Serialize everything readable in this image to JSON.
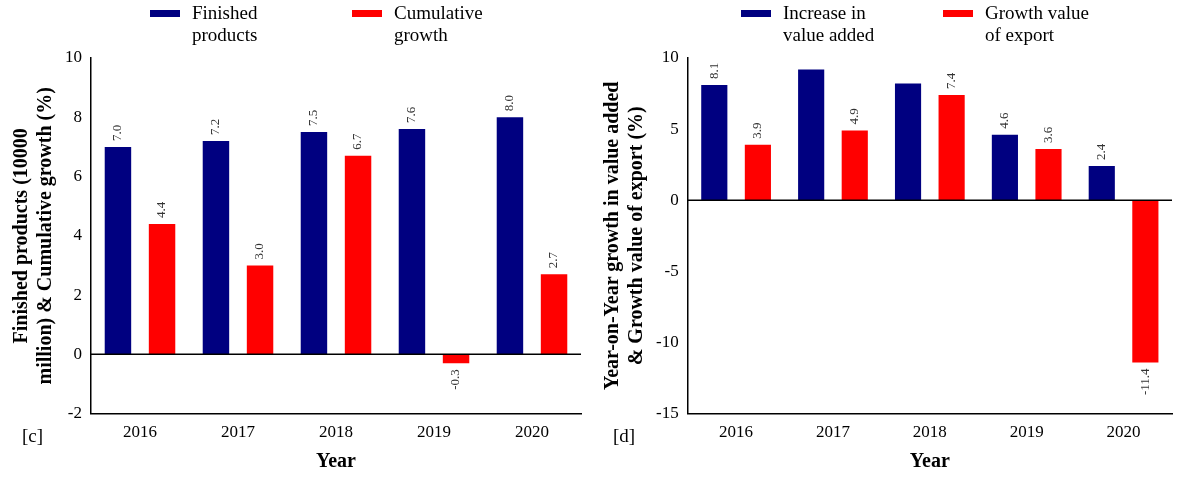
{
  "chart_data": [
    {
      "type": "bar",
      "categories": [
        "2016",
        "2017",
        "2018",
        "2019",
        "2020"
      ],
      "xlabel": "Year",
      "ylabel": "Finished products (10000 million) & Cumulative growth (%)",
      "series": [
        {
          "name": "Finished products",
          "color": "#000080",
          "values": [
            7.0,
            7.2,
            7.5,
            7.6,
            8.0
          ],
          "value_labels": [
            "7.0",
            "7.2",
            "7.5",
            "7.6",
            "8.0"
          ]
        },
        {
          "name": "Cumulative growth",
          "color": "#ff0000",
          "values": [
            4.4,
            3.0,
            6.7,
            -0.3,
            2.7
          ],
          "value_labels": [
            "4.4",
            "3.0",
            "6.7",
            "-0.3",
            "2.7"
          ]
        }
      ],
      "ylim": [
        -2,
        10
      ],
      "yticks": [
        -2,
        0,
        2,
        4,
        6,
        8,
        10
      ],
      "legend": "top",
      "annotations": [
        "[c]"
      ]
    },
    {
      "type": "bar",
      "categories": [
        "2016",
        "2017",
        "2018",
        "2019",
        "2020"
      ],
      "xlabel": "Year",
      "ylabel": "Year-on-Year growth in value added & Growth value of export (%)",
      "series": [
        {
          "name": "Increase in value added",
          "color": "#000080",
          "values": [
            8.1,
            9.2,
            8.2,
            4.6,
            2.4
          ],
          "value_labels": [
            "8.1",
            null,
            null,
            "4.6",
            "2.4"
          ]
        },
        {
          "name": "Growth value of export",
          "color": "#ff0000",
          "values": [
            3.9,
            4.9,
            7.4,
            3.6,
            -11.4
          ],
          "value_labels": [
            "3.9",
            "4.9",
            "7.4",
            "3.6",
            "-11.4"
          ]
        }
      ],
      "ylim": [
        -15,
        10
      ],
      "yticks": [
        -15,
        -10,
        -5,
        0,
        5,
        10
      ],
      "legend": "top",
      "annotations": [
        "[d]"
      ]
    }
  ]
}
